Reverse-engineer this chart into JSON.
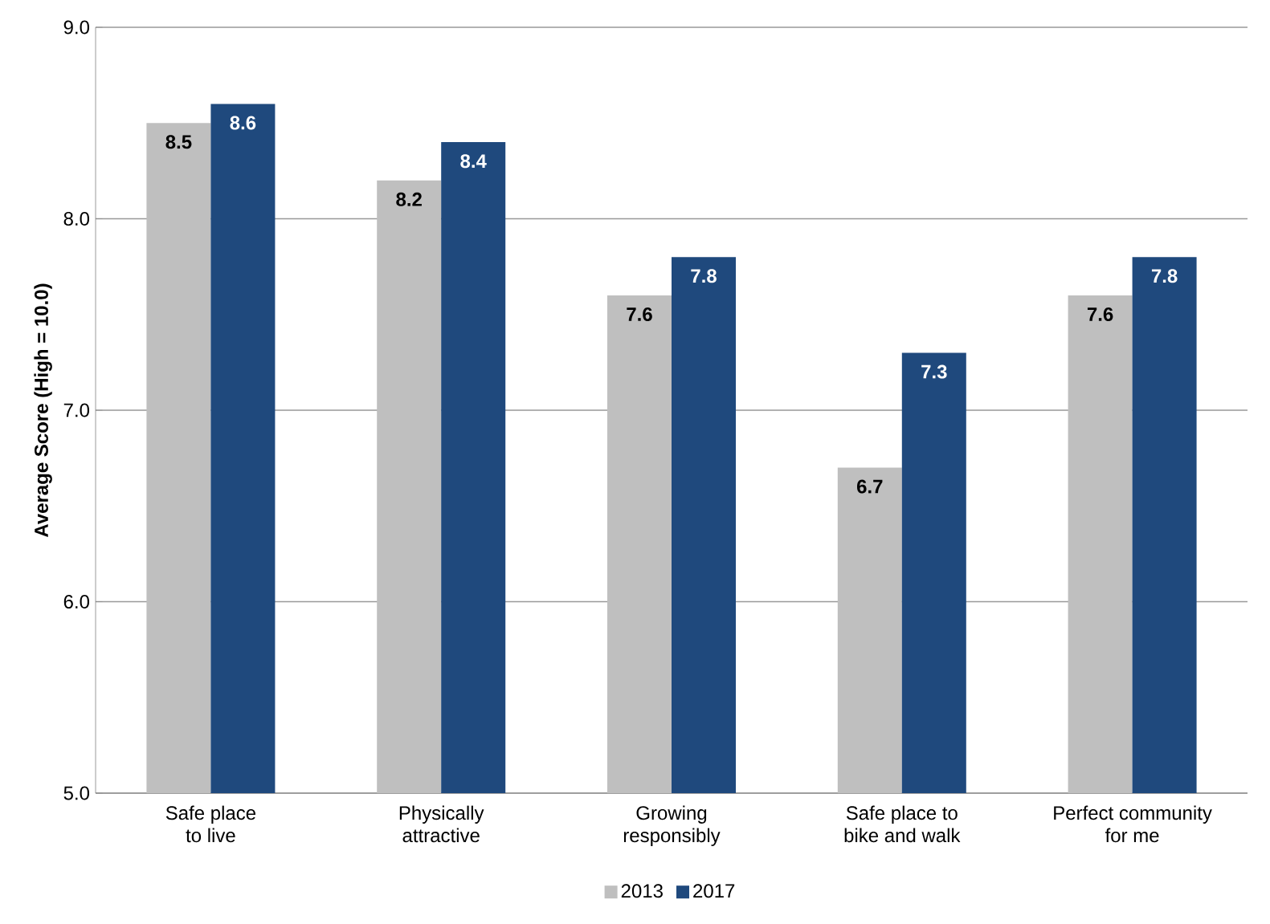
{
  "chart_data": {
    "type": "bar",
    "ylabel": "Average Score (High = 10.0)",
    "categories": [
      "Safe place to live",
      "Physically attractive",
      "Growing responsibly",
      "Safe place to bike and walk",
      "Perfect community for me"
    ],
    "series": [
      {
        "name": "2013",
        "color": "#bfbfbf",
        "values": [
          8.5,
          8.2,
          7.6,
          6.7,
          7.6
        ]
      },
      {
        "name": "2017",
        "color": "#1f497d",
        "values": [
          8.6,
          8.4,
          7.8,
          7.3,
          7.8
        ]
      }
    ],
    "ylim": [
      5,
      9
    ],
    "yticks": [
      {
        "value": 5,
        "label": "5.0"
      },
      {
        "value": 6,
        "label": "6.0"
      },
      {
        "value": 7,
        "label": "7.0"
      },
      {
        "value": 8,
        "label": "8.0"
      },
      {
        "value": 9,
        "label": "9.0"
      }
    ],
    "grid": "y",
    "legend": "bottom",
    "data_labels": true
  }
}
